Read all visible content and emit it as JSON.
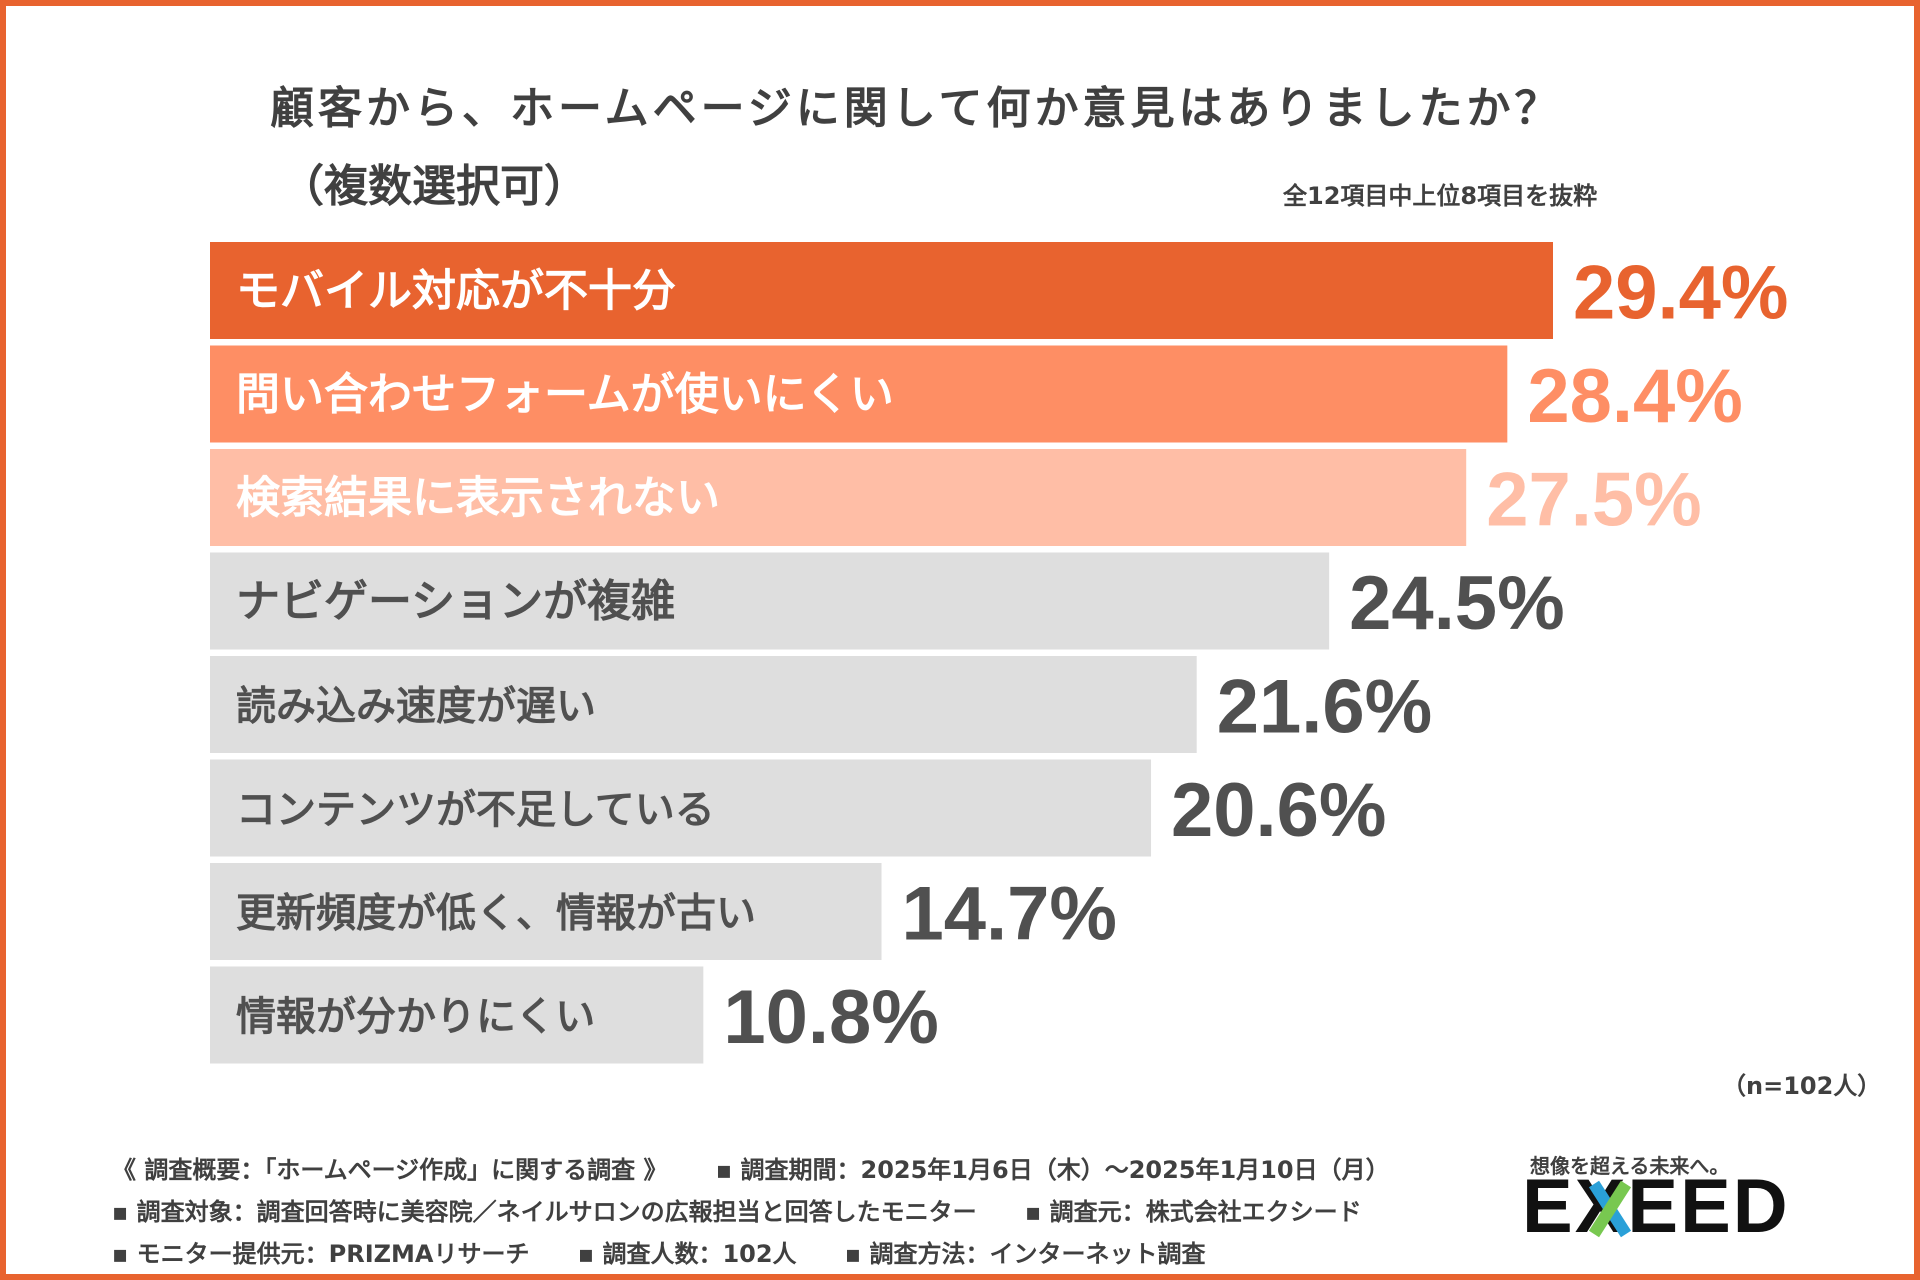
{
  "title": "顧客から、ホームページに関して何か意見はありましたか？",
  "title_line2": "（複数選択可）",
  "note": "全12項目中上位8項目を抜粋",
  "sample_note": "（n=102人）",
  "colors": {
    "frame": "#e8632f",
    "bar_1": "#e8632f",
    "bar_2": "#fe8e64",
    "bar_3": "#ffbea6",
    "bar_gray": "#dedede",
    "label_light": "#ffffff",
    "label_dark": "#505050",
    "value_gray": "#505050"
  },
  "chart_data": {
    "type": "bar",
    "orientation": "horizontal",
    "title": "顧客から、ホームページに関して何か意見はありましたか？（複数選択可）",
    "categories": [
      "モバイル対応が不十分",
      "問い合わせフォームが使いにくい",
      "検索結果に表示されない",
      "ナビゲーションが複雑",
      "読み込み速度が遅い",
      "コンテンツが不足している",
      "更新頻度が低く、情報が古い",
      "情報が分かりにくい"
    ],
    "values": [
      29.4,
      28.4,
      27.5,
      24.5,
      21.6,
      20.6,
      14.7,
      10.8
    ],
    "value_labels": [
      "29.4%",
      "28.4%",
      "27.5%",
      "24.5%",
      "21.6%",
      "20.6%",
      "14.7%",
      "10.8%"
    ],
    "unit": "%",
    "xlim": [
      0,
      29.4
    ],
    "grid": false,
    "legend": "none"
  },
  "footer": {
    "line1": [
      "《 調査概要：「ホームページ作成」に関する調査 》",
      "▪ 調査期間：2025年1月6日（木）〜2025年1月10日（月）"
    ],
    "line2": [
      "▪ 調査対象：調査回答時に美容院／ネイルサロンの広報担当と回答したモニター",
      "▪ 調査元：株式会社エクシード"
    ],
    "line3": [
      "▪ モニター提供元：PRIZMAリサーチ",
      "▪ 調査人数：102人",
      "▪ 調査方法：インターネット調査"
    ]
  },
  "logo": {
    "tagline": "想像を超える未来へ。",
    "text": "EXEED",
    "icon": "exeed-logo"
  }
}
